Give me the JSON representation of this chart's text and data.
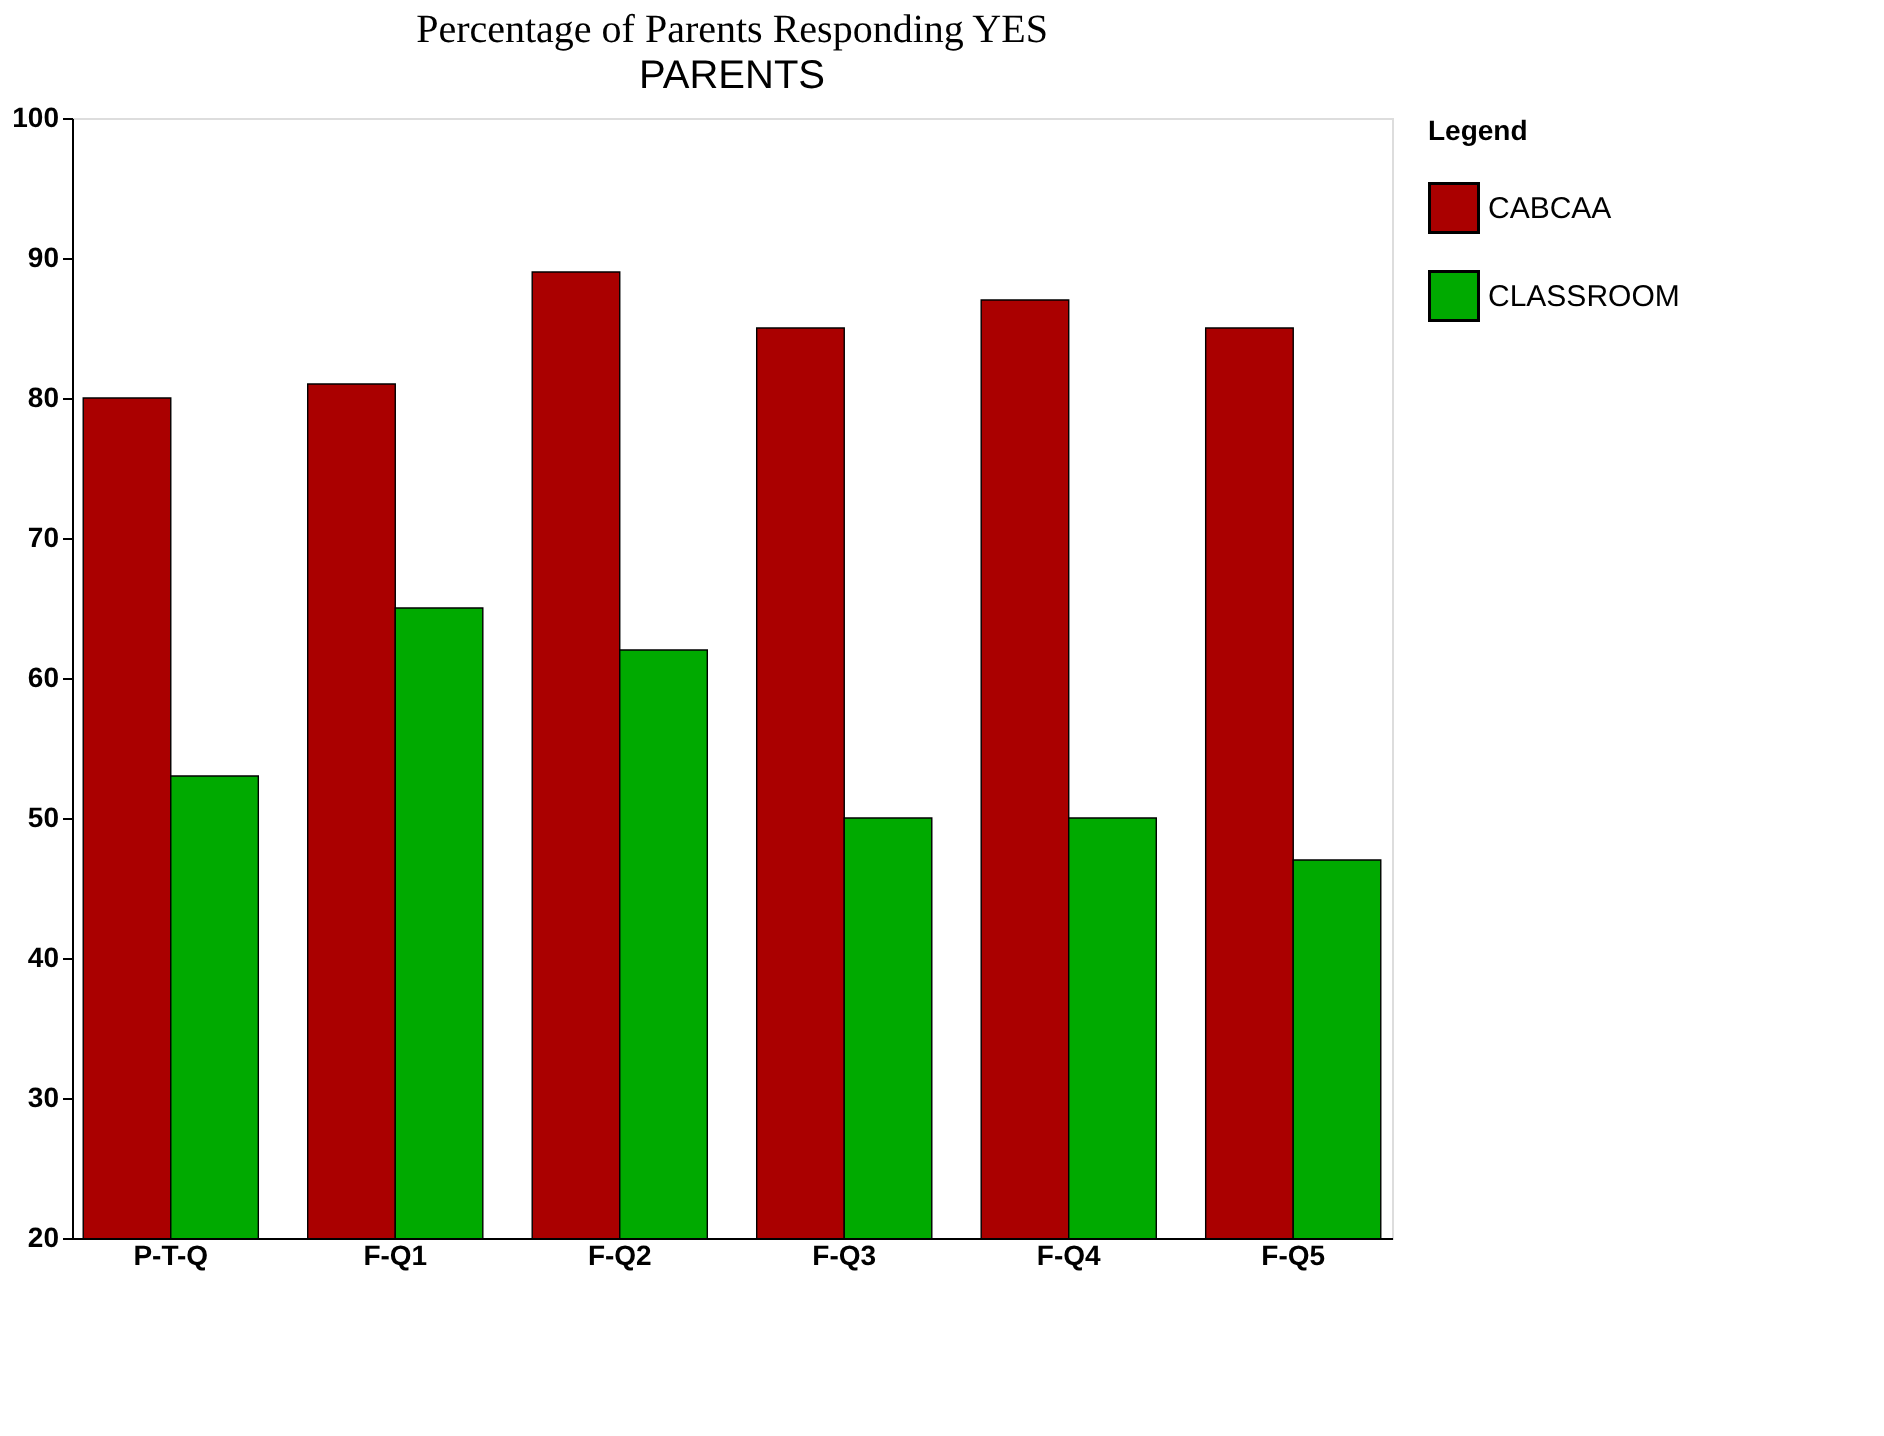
{
  "chart_data": {
    "type": "bar",
    "title": "Percentage of Parents Responding YES",
    "subtitle": "PARENTS",
    "legend_title": "Legend",
    "categories": [
      "P-T-Q",
      "F-Q1",
      "F-Q2",
      "F-Q3",
      "F-Q4",
      "F-Q5"
    ],
    "series": [
      {
        "name": "CABCAA",
        "color": "#aa0000",
        "values": [
          80,
          81,
          89,
          85,
          87,
          85
        ]
      },
      {
        "name": "CLASSROOM",
        "color": "#00aa00",
        "values": [
          53,
          65,
          62,
          50,
          50,
          47
        ]
      }
    ],
    "ylim": [
      20,
      100
    ],
    "yticks": [
      20,
      30,
      40,
      50,
      60,
      70,
      80,
      90,
      100
    ],
    "grid": false,
    "legend": "top right"
  }
}
